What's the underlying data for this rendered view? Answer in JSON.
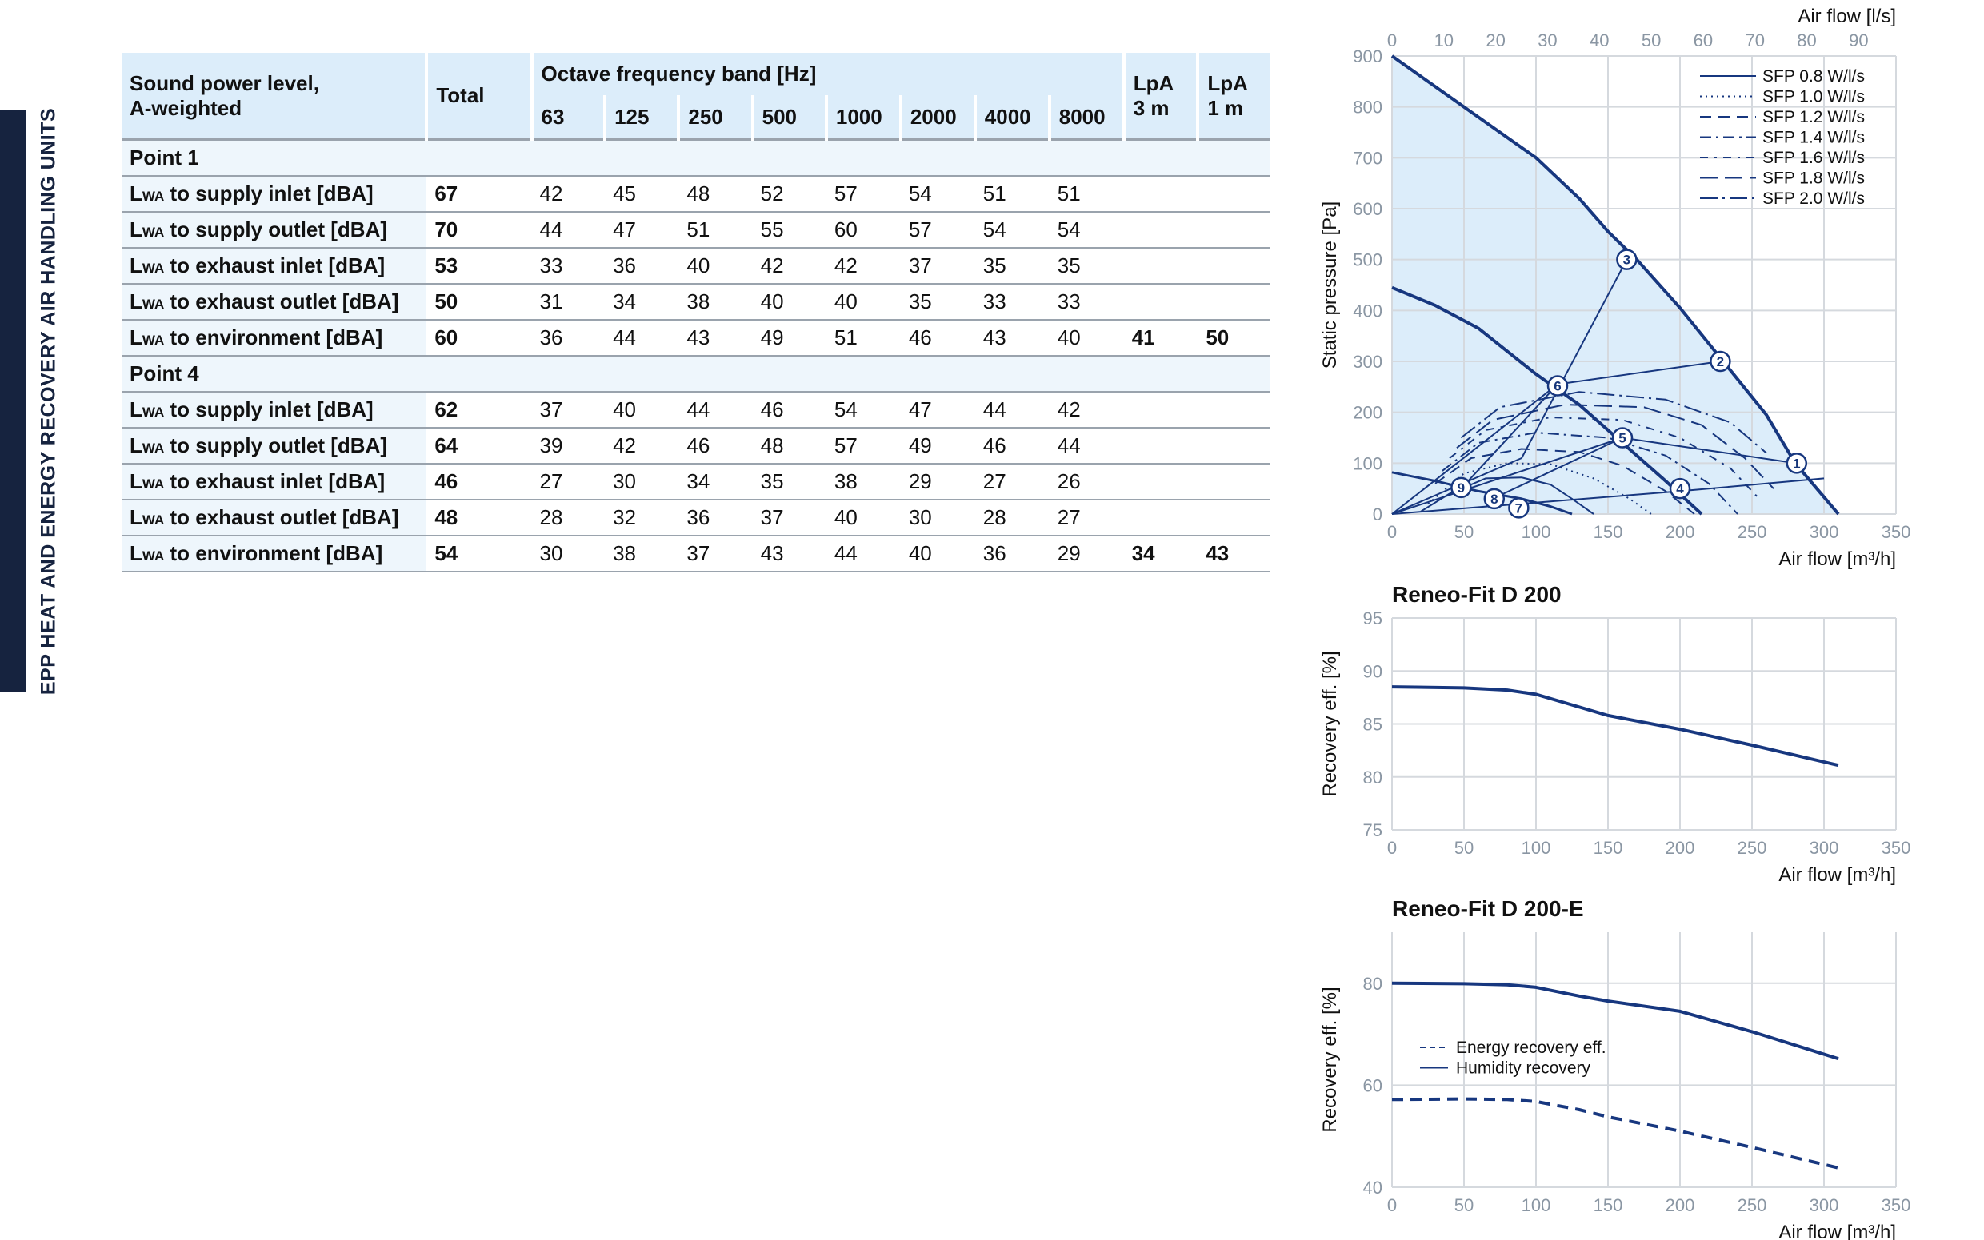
{
  "sidebar": {
    "title": "EPP HEAT AND ENERGY RECOVERY AIR HANDLING UNITS"
  },
  "table": {
    "header": {
      "label_line1": "Sound power level,",
      "label_line2": "A-weighted",
      "total": "Total",
      "octave": "Octave frequency band [Hz]",
      "bands": [
        "63",
        "125",
        "250",
        "500",
        "1000",
        "2000",
        "4000",
        "8000"
      ],
      "lpa3_a": "LpA",
      "lpa3_b": "3 m",
      "lpa1_a": "LpA",
      "lpa1_b": "1 m"
    },
    "groups": [
      {
        "name": "Point 1",
        "rows": [
          {
            "pre": "L",
            "sub": "WA",
            "label": " to supply inlet [dBA]",
            "total": "67",
            "bands": [
              "42",
              "45",
              "48",
              "52",
              "57",
              "54",
              "51",
              "51"
            ],
            "lpa3": "",
            "lpa1": ""
          },
          {
            "pre": "L",
            "sub": "WA",
            "label": " to supply outlet [dBA]",
            "total": "70",
            "bands": [
              "44",
              "47",
              "51",
              "55",
              "60",
              "57",
              "54",
              "54"
            ],
            "lpa3": "",
            "lpa1": ""
          },
          {
            "pre": "L",
            "sub": "WA",
            "label": " to exhaust inlet [dBA]",
            "total": "53",
            "bands": [
              "33",
              "36",
              "40",
              "42",
              "42",
              "37",
              "35",
              "35"
            ],
            "lpa3": "",
            "lpa1": ""
          },
          {
            "pre": "L",
            "sub": "WA",
            "label": " to exhaust outlet [dBA]",
            "total": "50",
            "bands": [
              "31",
              "34",
              "38",
              "40",
              "40",
              "35",
              "33",
              "33"
            ],
            "lpa3": "",
            "lpa1": ""
          },
          {
            "pre": "L",
            "sub": "WA",
            "label": " to environment [dBA]",
            "total": "60",
            "bands": [
              "36",
              "44",
              "43",
              "49",
              "51",
              "46",
              "43",
              "40"
            ],
            "lpa3": "41",
            "lpa1": "50"
          }
        ]
      },
      {
        "name": "Point 4",
        "rows": [
          {
            "pre": "L",
            "sub": "WA",
            "label": " to supply inlet [dBA]",
            "total": "62",
            "bands": [
              "37",
              "40",
              "44",
              "46",
              "54",
              "47",
              "44",
              "42"
            ],
            "lpa3": "",
            "lpa1": ""
          },
          {
            "pre": "L",
            "sub": "WA",
            "label": " to supply outlet [dBA]",
            "total": "64",
            "bands": [
              "39",
              "42",
              "46",
              "48",
              "57",
              "49",
              "46",
              "44"
            ],
            "lpa3": "",
            "lpa1": ""
          },
          {
            "pre": "L",
            "sub": "WA",
            "label": " to exhaust inlet [dBA]",
            "total": "46",
            "bands": [
              "27",
              "30",
              "34",
              "35",
              "38",
              "29",
              "27",
              "26"
            ],
            "lpa3": "",
            "lpa1": ""
          },
          {
            "pre": "L",
            "sub": "WA",
            "label": " to exhaust outlet [dBA]",
            "total": "48",
            "bands": [
              "28",
              "32",
              "36",
              "37",
              "40",
              "30",
              "28",
              "27"
            ],
            "lpa3": "",
            "lpa1": ""
          },
          {
            "pre": "L",
            "sub": "WA",
            "label": " to environment [dBA]",
            "total": "54",
            "bands": [
              "30",
              "38",
              "37",
              "43",
              "44",
              "40",
              "36",
              "29"
            ],
            "lpa3": "34",
            "lpa1": "43"
          }
        ]
      }
    ]
  },
  "chart_data": [
    {
      "type": "line",
      "title": "",
      "xlabel": "Air flow [m³/h]",
      "x2label": "Air flow [l/s]",
      "ylabel": "Static pressure [Pa]",
      "xlim": [
        0,
        350
      ],
      "x2lim": [
        0,
        97.2
      ],
      "ylim": [
        0,
        900
      ],
      "xticks": [
        "0",
        "50",
        "100",
        "150",
        "200",
        "250",
        "300",
        "350"
      ],
      "x2ticks": [
        "0",
        "10",
        "20",
        "30",
        "40",
        "50",
        "60",
        "70",
        "80",
        "90"
      ],
      "yticks": [
        "0",
        "100",
        "200",
        "300",
        "400",
        "500",
        "600",
        "700",
        "800",
        "900"
      ],
      "grid": true,
      "legend_position": "top-right",
      "legend": [
        {
          "label": "SFP 0.8 W/l/s",
          "dash": "solid"
        },
        {
          "label": "SFP 1.0 W/l/s",
          "dash": "dotted"
        },
        {
          "label": "SFP 1.2 W/l/s",
          "dash": "dash"
        },
        {
          "label": "SFP 1.4 W/l/s",
          "dash": "dashdot"
        },
        {
          "label": "SFP 1.6 W/l/s",
          "dash": "dashdotsparse"
        },
        {
          "label": "SFP 1.8 W/l/s",
          "dash": "longdash"
        },
        {
          "label": "SFP 2.0 W/l/s",
          "dash": "longdashdot"
        }
      ],
      "series": [
        {
          "role": "max",
          "values": [
            [
              0,
              900
            ],
            [
              50,
              800
            ],
            [
              100,
              700
            ],
            [
              130,
              620
            ],
            [
              150,
              555
            ],
            [
              170,
              500
            ],
            [
              200,
              405
            ],
            [
              230,
              300
            ],
            [
              260,
              195
            ],
            [
              280,
              100
            ],
            [
              310,
              0
            ]
          ]
        },
        {
          "role": "mid",
          "values": [
            [
              0,
              445
            ],
            [
              30,
              410
            ],
            [
              60,
              365
            ],
            [
              80,
              320
            ],
            [
              100,
              275
            ],
            [
              130,
              215
            ],
            [
              160,
              140
            ],
            [
              190,
              65
            ],
            [
              215,
              0
            ]
          ]
        },
        {
          "role": "min",
          "values": [
            [
              0,
              82
            ],
            [
              30,
              65
            ],
            [
              60,
              45
            ],
            [
              90,
              30
            ],
            [
              110,
              15
            ],
            [
              125,
              0
            ]
          ]
        },
        {
          "role": "sfp",
          "dash": "solid",
          "values": [
            [
              20,
              5
            ],
            [
              40,
              40
            ],
            [
              65,
              70
            ],
            [
              90,
              72
            ],
            [
              110,
              58
            ],
            [
              125,
              30
            ],
            [
              140,
              0
            ]
          ]
        },
        {
          "role": "sfp",
          "dash": "dotted",
          "values": [
            [
              25,
              20
            ],
            [
              50,
              80
            ],
            [
              80,
              100
            ],
            [
              110,
              98
            ],
            [
              140,
              70
            ],
            [
              165,
              30
            ],
            [
              180,
              0
            ]
          ]
        },
        {
          "role": "sfp",
          "dash": "dash",
          "values": [
            [
              30,
              60
            ],
            [
              55,
              110
            ],
            [
              90,
              128
            ],
            [
              130,
              122
            ],
            [
              160,
              95
            ],
            [
              190,
              45
            ],
            [
              210,
              0
            ]
          ]
        },
        {
          "role": "sfp",
          "dash": "dashdot",
          "values": [
            [
              35,
              85
            ],
            [
              60,
              140
            ],
            [
              100,
              160
            ],
            [
              150,
              150
            ],
            [
              190,
              115
            ],
            [
              220,
              60
            ],
            [
              240,
              0
            ]
          ]
        },
        {
          "role": "sfp",
          "dash": "dashdotsparse",
          "values": [
            [
              40,
              110
            ],
            [
              65,
              165
            ],
            [
              110,
              190
            ],
            [
              160,
              185
            ],
            [
              200,
              150
            ],
            [
              235,
              90
            ],
            [
              255,
              30
            ]
          ]
        },
        {
          "role": "sfp",
          "dash": "longdash",
          "values": [
            [
              45,
              130
            ],
            [
              70,
              185
            ],
            [
              120,
              215
            ],
            [
              175,
              210
            ],
            [
              215,
              175
            ],
            [
              245,
              110
            ],
            [
              265,
              50
            ]
          ]
        },
        {
          "role": "sfp",
          "dash": "longdashdot",
          "values": [
            [
              48,
              150
            ],
            [
              75,
              210
            ],
            [
              130,
              240
            ],
            [
              190,
              225
            ],
            [
              235,
              180
            ],
            [
              260,
              120
            ]
          ]
        },
        {
          "role": "system",
          "values": [
            [
              0,
              0
            ],
            [
              90,
              110
            ],
            [
              163,
              500
            ]
          ]
        },
        {
          "role": "system",
          "values": [
            [
              0,
              0
            ],
            [
              115,
              255
            ],
            [
              228,
              300
            ]
          ]
        },
        {
          "role": "system",
          "values": [
            [
              0,
              0
            ],
            [
              160,
              150
            ],
            [
              280,
              100
            ]
          ]
        },
        {
          "role": "system",
          "values": [
            [
              0,
              0
            ],
            [
              200,
              45
            ],
            [
              300,
              70
            ]
          ]
        },
        {
          "role": "system",
          "values": [
            [
              48,
              50
            ],
            [
              115,
              255
            ]
          ]
        },
        {
          "role": "system",
          "values": [
            [
              70,
              30
            ],
            [
              160,
              150
            ]
          ]
        }
      ],
      "points": [
        {
          "label": "1",
          "x": 281,
          "y": 100
        },
        {
          "label": "2",
          "x": 228,
          "y": 300
        },
        {
          "label": "3",
          "x": 163,
          "y": 500
        },
        {
          "label": "4",
          "x": 200,
          "y": 50
        },
        {
          "label": "5",
          "x": 160,
          "y": 150
        },
        {
          "label": "6",
          "x": 115,
          "y": 252
        },
        {
          "label": "7",
          "x": 88,
          "y": 12
        },
        {
          "label": "8",
          "x": 71,
          "y": 30
        },
        {
          "label": "9",
          "x": 48,
          "y": 52
        }
      ]
    },
    {
      "type": "line",
      "title": "Reneo-Fit D 200",
      "xlabel": "Air flow [m³/h]",
      "ylabel": "Recovery eff. [%]",
      "xlim": [
        0,
        350
      ],
      "ylim": [
        75,
        95
      ],
      "xticks": [
        "0",
        "50",
        "100",
        "150",
        "200",
        "250",
        "300",
        "350"
      ],
      "yticks": [
        "75",
        "80",
        "85",
        "90",
        "95"
      ],
      "grid": true,
      "series": [
        {
          "values": [
            [
              0,
              88.5
            ],
            [
              50,
              88.4
            ],
            [
              80,
              88.2
            ],
            [
              100,
              87.8
            ],
            [
              120,
              87.0
            ],
            [
              150,
              85.8
            ],
            [
              200,
              84.5
            ],
            [
              250,
              83.0
            ],
            [
              310,
              81.1
            ]
          ]
        }
      ]
    },
    {
      "type": "line",
      "title": "Reneo-Fit D 200-E",
      "xlabel": "Air flow [m³/h]",
      "ylabel": "Recovery eff. [%]",
      "xlim": [
        0,
        350
      ],
      "ylim": [
        40,
        90
      ],
      "xticks": [
        "0",
        "50",
        "100",
        "150",
        "200",
        "250",
        "300",
        "350"
      ],
      "yticks": [
        "40",
        "60",
        "80"
      ],
      "grid": true,
      "legend_position": "bottom-left",
      "series": [
        {
          "name": "Humidity recovery",
          "dash": "solid",
          "values": [
            [
              0,
              80
            ],
            [
              50,
              79.9
            ],
            [
              80,
              79.7
            ],
            [
              100,
              79.2
            ],
            [
              130,
              77.5
            ],
            [
              150,
              76.5
            ],
            [
              200,
              74.5
            ],
            [
              250,
              70.5
            ],
            [
              310,
              65.2
            ]
          ]
        },
        {
          "name": "Energy recovery eff.",
          "dash": "dash",
          "values": [
            [
              0,
              57.2
            ],
            [
              50,
              57.3
            ],
            [
              80,
              57.2
            ],
            [
              100,
              56.8
            ],
            [
              130,
              55.2
            ],
            [
              150,
              53.8
            ],
            [
              200,
              51
            ],
            [
              250,
              47.8
            ],
            [
              310,
              43.8
            ]
          ]
        }
      ]
    }
  ]
}
